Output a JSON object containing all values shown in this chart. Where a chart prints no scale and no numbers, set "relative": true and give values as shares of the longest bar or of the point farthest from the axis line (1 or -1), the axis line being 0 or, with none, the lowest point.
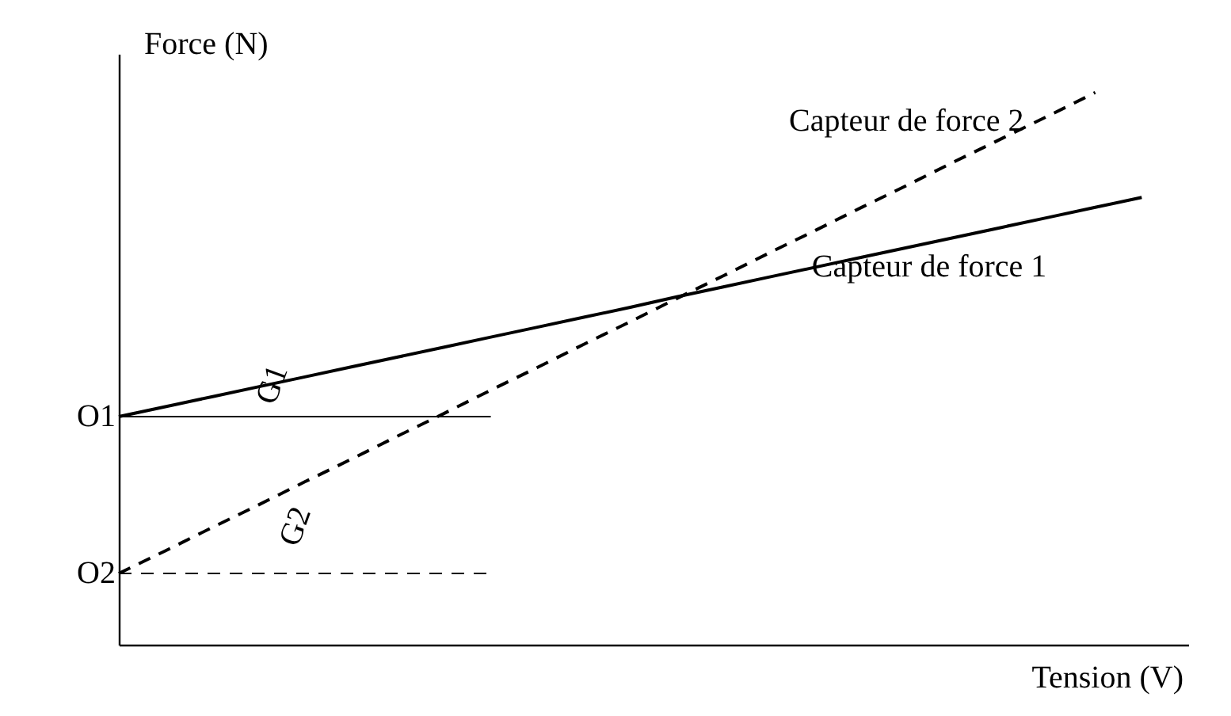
{
  "chart_data": {
    "type": "line",
    "relative": true,
    "xlabel": "Tension (V)",
    "ylabel": "Force (N)",
    "tick_labels": false,
    "grid": false,
    "marker": "none",
    "categories": [
      null,
      null,
      null,
      null,
      null,
      null,
      null,
      null,
      null,
      null,
      null,
      null,
      null,
      null,
      null,
      null,
      null,
      null,
      null,
      null,
      null,
      null,
      null,
      null
    ],
    "series": [
      {
        "name": "Capteur de force 1",
        "color": "#000000",
        "line_style": "solid",
        "values": [
          0.413,
          0.431,
          0.449,
          0.467,
          0.485,
          0.503,
          0.521,
          0.539,
          0.557,
          0.575,
          0.593,
          0.611,
          0.63,
          0.648,
          0.666,
          0.684,
          0.702,
          0.72,
          0.738,
          0.756,
          0.774,
          0.792,
          0.81,
          null
        ]
      },
      {
        "name": "Capteur de force 2",
        "color": "#000000",
        "line_style": "dashed",
        "values": [
          0.129,
          0.17,
          0.212,
          0.253,
          0.295,
          0.336,
          0.378,
          0.419,
          0.461,
          0.502,
          0.544,
          0.585,
          0.627,
          0.668,
          0.71,
          0.751,
          0.793,
          0.834,
          0.876,
          0.917,
          0.958,
          1.0,
          null,
          null
        ]
      },
      {
        "color": "#000000",
        "line_style": "solid",
        "values": [
          0.413,
          0.413,
          0.413,
          0.413,
          0.413,
          0.413,
          0.413,
          0.413,
          0.413,
          null,
          null,
          null,
          null,
          null,
          null,
          null,
          null,
          null,
          null,
          null,
          null,
          null,
          null,
          null
        ]
      },
      {
        "color": "#000000",
        "line_style": "dashed",
        "values": [
          0.129,
          0.129,
          0.129,
          0.129,
          0.129,
          0.129,
          0.129,
          0.129,
          0.129,
          null,
          null,
          null,
          null,
          null,
          null,
          null,
          null,
          null,
          null,
          null,
          null,
          null,
          null,
          null
        ]
      }
    ],
    "annotations": [
      "O1",
      "O2",
      "G1",
      "G2"
    ]
  }
}
